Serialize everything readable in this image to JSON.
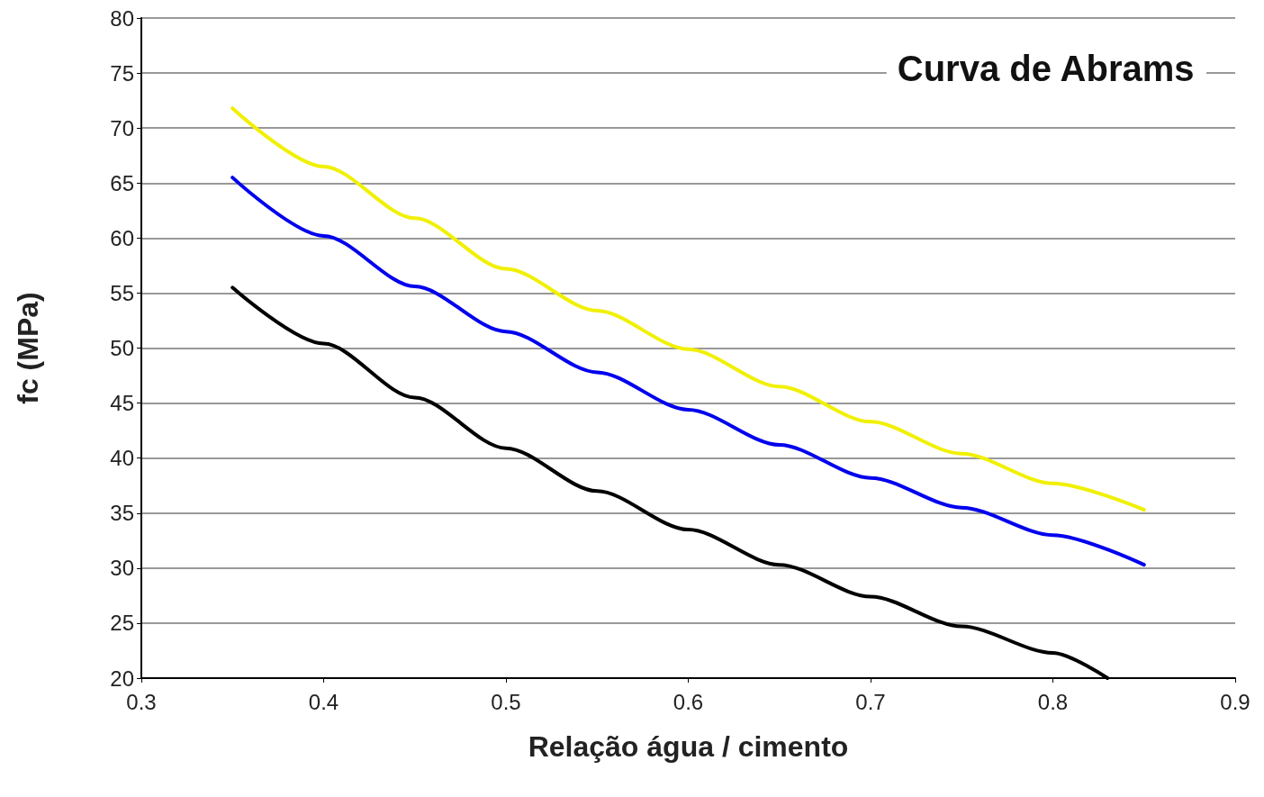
{
  "chart_data": {
    "type": "line",
    "title": "Curva de Abrams",
    "xlabel": "Relação água / cimento",
    "ylabel": "fc (MPa)",
    "xlim": [
      0.3,
      0.9
    ],
    "xticks": [
      0.3,
      0.4,
      0.5,
      0.6,
      0.7,
      0.8,
      0.9
    ],
    "ylim": [
      20,
      80
    ],
    "yticks": [
      20,
      25,
      30,
      35,
      40,
      45,
      50,
      55,
      60,
      65,
      70,
      75,
      80
    ],
    "grid": "y",
    "marker": "none",
    "line_style": "solid",
    "series": [
      {
        "color": "#f0f000",
        "x": [
          0.35,
          0.4,
          0.45,
          0.5,
          0.55,
          0.6,
          0.65,
          0.7,
          0.75,
          0.8,
          0.85
        ],
        "values": [
          71.8,
          66.5,
          61.8,
          57.2,
          53.4,
          49.9,
          46.5,
          43.3,
          40.4,
          37.7,
          35.3
        ]
      },
      {
        "color": "#0000ee",
        "x": [
          0.35,
          0.4,
          0.45,
          0.5,
          0.55,
          0.6,
          0.65,
          0.7,
          0.75,
          0.8,
          0.85
        ],
        "values": [
          65.5,
          60.2,
          55.6,
          51.5,
          47.8,
          44.4,
          41.2,
          38.2,
          35.5,
          33.0,
          30.3
        ]
      },
      {
        "color": "#000000",
        "x": [
          0.35,
          0.4,
          0.45,
          0.5,
          0.55,
          0.6,
          0.65,
          0.7,
          0.75,
          0.8,
          0.83
        ],
        "values": [
          55.5,
          50.4,
          45.5,
          40.9,
          37.0,
          33.5,
          30.3,
          27.4,
          24.7,
          22.3,
          20.0
        ]
      }
    ]
  }
}
